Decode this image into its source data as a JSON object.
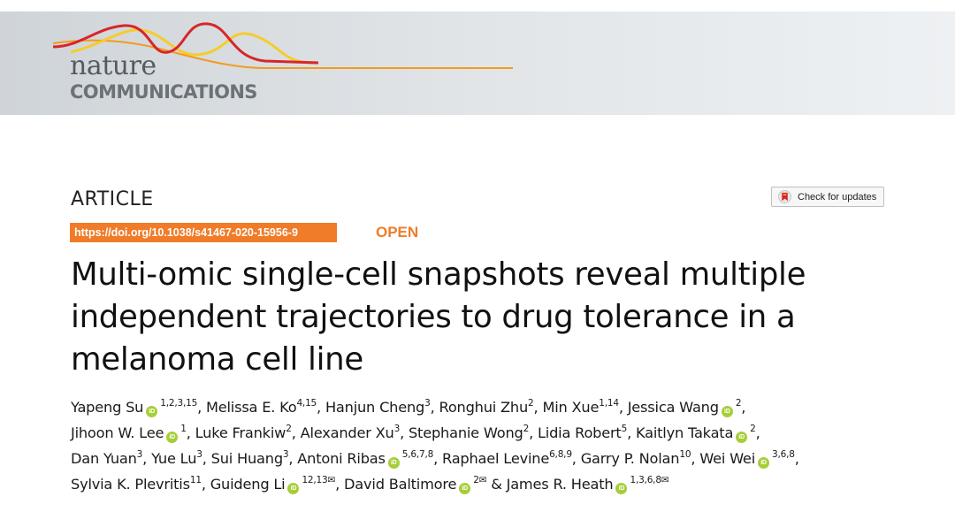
{
  "journal": {
    "brand_word": "nature",
    "sub_brand": "COMMUNICATIONS"
  },
  "article_type": "ARTICLE",
  "check_updates": "Check for updates",
  "doi": "https://doi.org/10.1038/s41467-020-15956-9",
  "access": "OPEN",
  "title_lines": [
    "Multi-omic single-cell snapshots reveal multiple",
    "independent trajectories to drug tolerance in a",
    "melanoma cell line"
  ],
  "orcid_glyph": "iD",
  "mail_glyph": "✉",
  "authors": [
    {
      "name": "Yapeng Su",
      "orcid": true,
      "aff": "1,2,3,15"
    },
    {
      "name": "Melissa E. Ko",
      "orcid": false,
      "aff": "4,15"
    },
    {
      "name": "Hanjun Cheng",
      "orcid": false,
      "aff": "3"
    },
    {
      "name": "Ronghui Zhu",
      "orcid": false,
      "aff": "2"
    },
    {
      "name": "Min Xue",
      "orcid": false,
      "aff": "1,14"
    },
    {
      "name": "Jessica Wang",
      "orcid": true,
      "aff": "2"
    },
    {
      "name": "Jihoon W. Lee",
      "orcid": true,
      "aff": "1"
    },
    {
      "name": "Luke Frankiw",
      "orcid": false,
      "aff": "2"
    },
    {
      "name": "Alexander Xu",
      "orcid": false,
      "aff": "3"
    },
    {
      "name": "Stephanie Wong",
      "orcid": false,
      "aff": "2"
    },
    {
      "name": "Lidia Robert",
      "orcid": false,
      "aff": "5"
    },
    {
      "name": "Kaitlyn Takata",
      "orcid": true,
      "aff": "2"
    },
    {
      "name": "Dan Yuan",
      "orcid": false,
      "aff": "3"
    },
    {
      "name": "Yue Lu",
      "orcid": false,
      "aff": "3"
    },
    {
      "name": "Sui Huang",
      "orcid": false,
      "aff": "3"
    },
    {
      "name": "Antoni Ribas",
      "orcid": true,
      "aff": "5,6,7,8"
    },
    {
      "name": "Raphael Levine",
      "orcid": false,
      "aff": "6,8,9"
    },
    {
      "name": "Garry P. Nolan",
      "orcid": false,
      "aff": "10"
    },
    {
      "name": "Wei Wei",
      "orcid": true,
      "aff": "3,6,8"
    },
    {
      "name": "Sylvia K. Plevritis",
      "orcid": false,
      "aff": "11"
    },
    {
      "name": "Guideng Li",
      "orcid": true,
      "aff": "12,13",
      "corresponding": true
    },
    {
      "name": "David Baltimore",
      "orcid": true,
      "aff": "2",
      "corresponding": true
    },
    {
      "name": "James R. Heath",
      "orcid": true,
      "aff": "1,3,6,8",
      "corresponding": true
    }
  ],
  "author_lines": [
    6,
    6,
    7,
    4
  ],
  "colors": {
    "accent_orange": "#f07b28",
    "orcid_green": "#a6ce39",
    "logo_red": "#d7262a",
    "logo_orange": "#f39a1f",
    "logo_yellow": "#f5cc2d"
  }
}
